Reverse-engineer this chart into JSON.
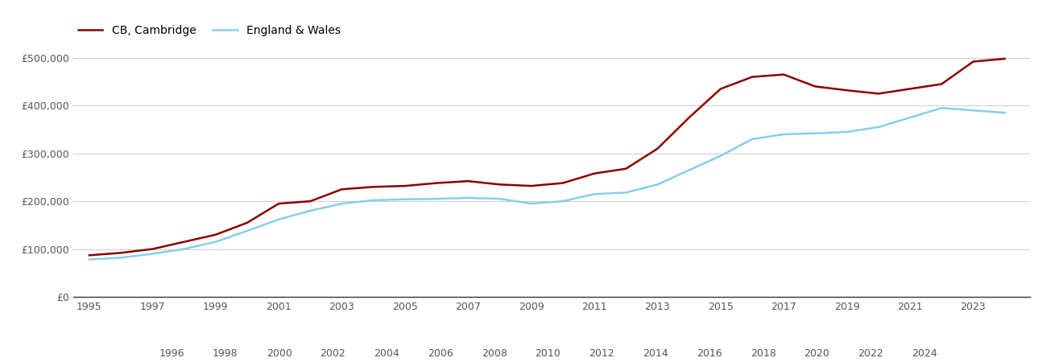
{
  "cb_cambridge_years": [
    1995,
    1996,
    1997,
    1998,
    1999,
    2000,
    2001,
    2002,
    2003,
    2004,
    2005,
    2006,
    2007,
    2008,
    2009,
    2010,
    2011,
    2012,
    2013,
    2014,
    2015,
    2016,
    2017,
    2018,
    2019,
    2020,
    2021,
    2022,
    2023,
    2024
  ],
  "cb_cambridge_values": [
    87000,
    92000,
    100000,
    115000,
    130000,
    155000,
    195000,
    200000,
    225000,
    230000,
    232000,
    238000,
    242000,
    235000,
    232000,
    238000,
    258000,
    268000,
    310000,
    375000,
    435000,
    460000,
    465000,
    440000,
    432000,
    425000,
    435000,
    445000,
    492000,
    498000
  ],
  "ew_years": [
    1995,
    1996,
    1997,
    1998,
    1999,
    2000,
    2001,
    2002,
    2003,
    2004,
    2005,
    2006,
    2007,
    2008,
    2009,
    2010,
    2011,
    2012,
    2013,
    2014,
    2015,
    2016,
    2017,
    2018,
    2019,
    2020,
    2021,
    2022,
    2023,
    2024
  ],
  "ew_values": [
    78000,
    82000,
    90000,
    100000,
    115000,
    138000,
    162000,
    180000,
    195000,
    202000,
    204000,
    205000,
    207000,
    205000,
    195000,
    200000,
    215000,
    218000,
    235000,
    265000,
    295000,
    330000,
    340000,
    342000,
    345000,
    355000,
    375000,
    395000,
    390000,
    385000
  ],
  "cb_color": "#8b0000",
  "ew_color": "#87ceeb",
  "cb_label": "CB, Cambridge",
  "ew_label": "England & Wales",
  "yticks": [
    0,
    100000,
    200000,
    300000,
    400000,
    500000
  ],
  "ylim": [
    0,
    530000
  ],
  "xlim": [
    1994.5,
    2024.8
  ],
  "xticks_odd": [
    1995,
    1997,
    1999,
    2001,
    2003,
    2005,
    2007,
    2009,
    2011,
    2013,
    2015,
    2017,
    2019,
    2021,
    2023
  ],
  "xticks_even": [
    1996,
    1998,
    2000,
    2002,
    2004,
    2006,
    2008,
    2010,
    2012,
    2014,
    2016,
    2018,
    2020,
    2022,
    2024
  ],
  "bg_color": "#ffffff",
  "grid_color": "#cccccc",
  "line_width": 1.8,
  "tick_label_color": "#555555",
  "tick_label_size": 9
}
